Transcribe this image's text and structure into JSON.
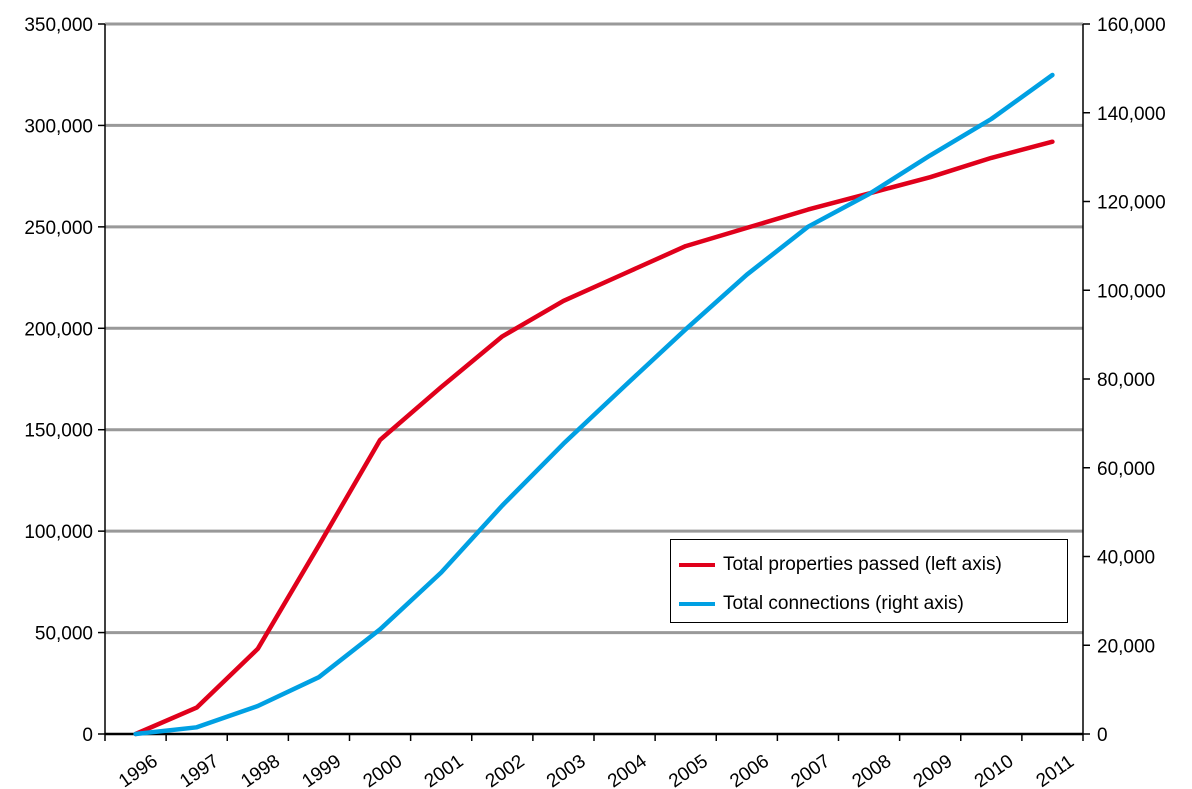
{
  "chart_data": {
    "type": "line",
    "categories": [
      "1996",
      "1997",
      "1998",
      "1999",
      "2000",
      "2001",
      "2002",
      "2003",
      "2004",
      "2005",
      "2006",
      "2007",
      "2008",
      "2009",
      "2010",
      "2011"
    ],
    "left_axis": {
      "ylim": [
        0,
        350000
      ],
      "ticks": [
        "0",
        "50,000",
        "100,000",
        "150,000",
        "200,000",
        "250,000",
        "300,000",
        "350,000"
      ]
    },
    "right_axis": {
      "ylim": [
        0,
        160000
      ],
      "ticks": [
        "0",
        "20,000",
        "40,000",
        "60,000",
        "80,000",
        "100,000",
        "120,000",
        "140,000",
        "160,000"
      ]
    },
    "grid": "horizontal",
    "legend_position": "lower-right",
    "series": [
      {
        "name": "Total properties passed (left axis)",
        "axis": "left",
        "color": "#e0001b",
        "values": [
          0,
          13000,
          42000,
          93000,
          145000,
          171000,
          196000,
          213500,
          227000,
          240500,
          249500,
          258500,
          266500,
          274500,
          284000,
          292000
        ]
      },
      {
        "name": "Total connections (right axis)",
        "axis": "right",
        "color": "#00a0e3",
        "values": [
          0,
          1500,
          6300,
          12800,
          23600,
          36400,
          51500,
          65400,
          78400,
          91200,
          103500,
          114300,
          121700,
          130400,
          138600,
          148500
        ]
      }
    ]
  }
}
